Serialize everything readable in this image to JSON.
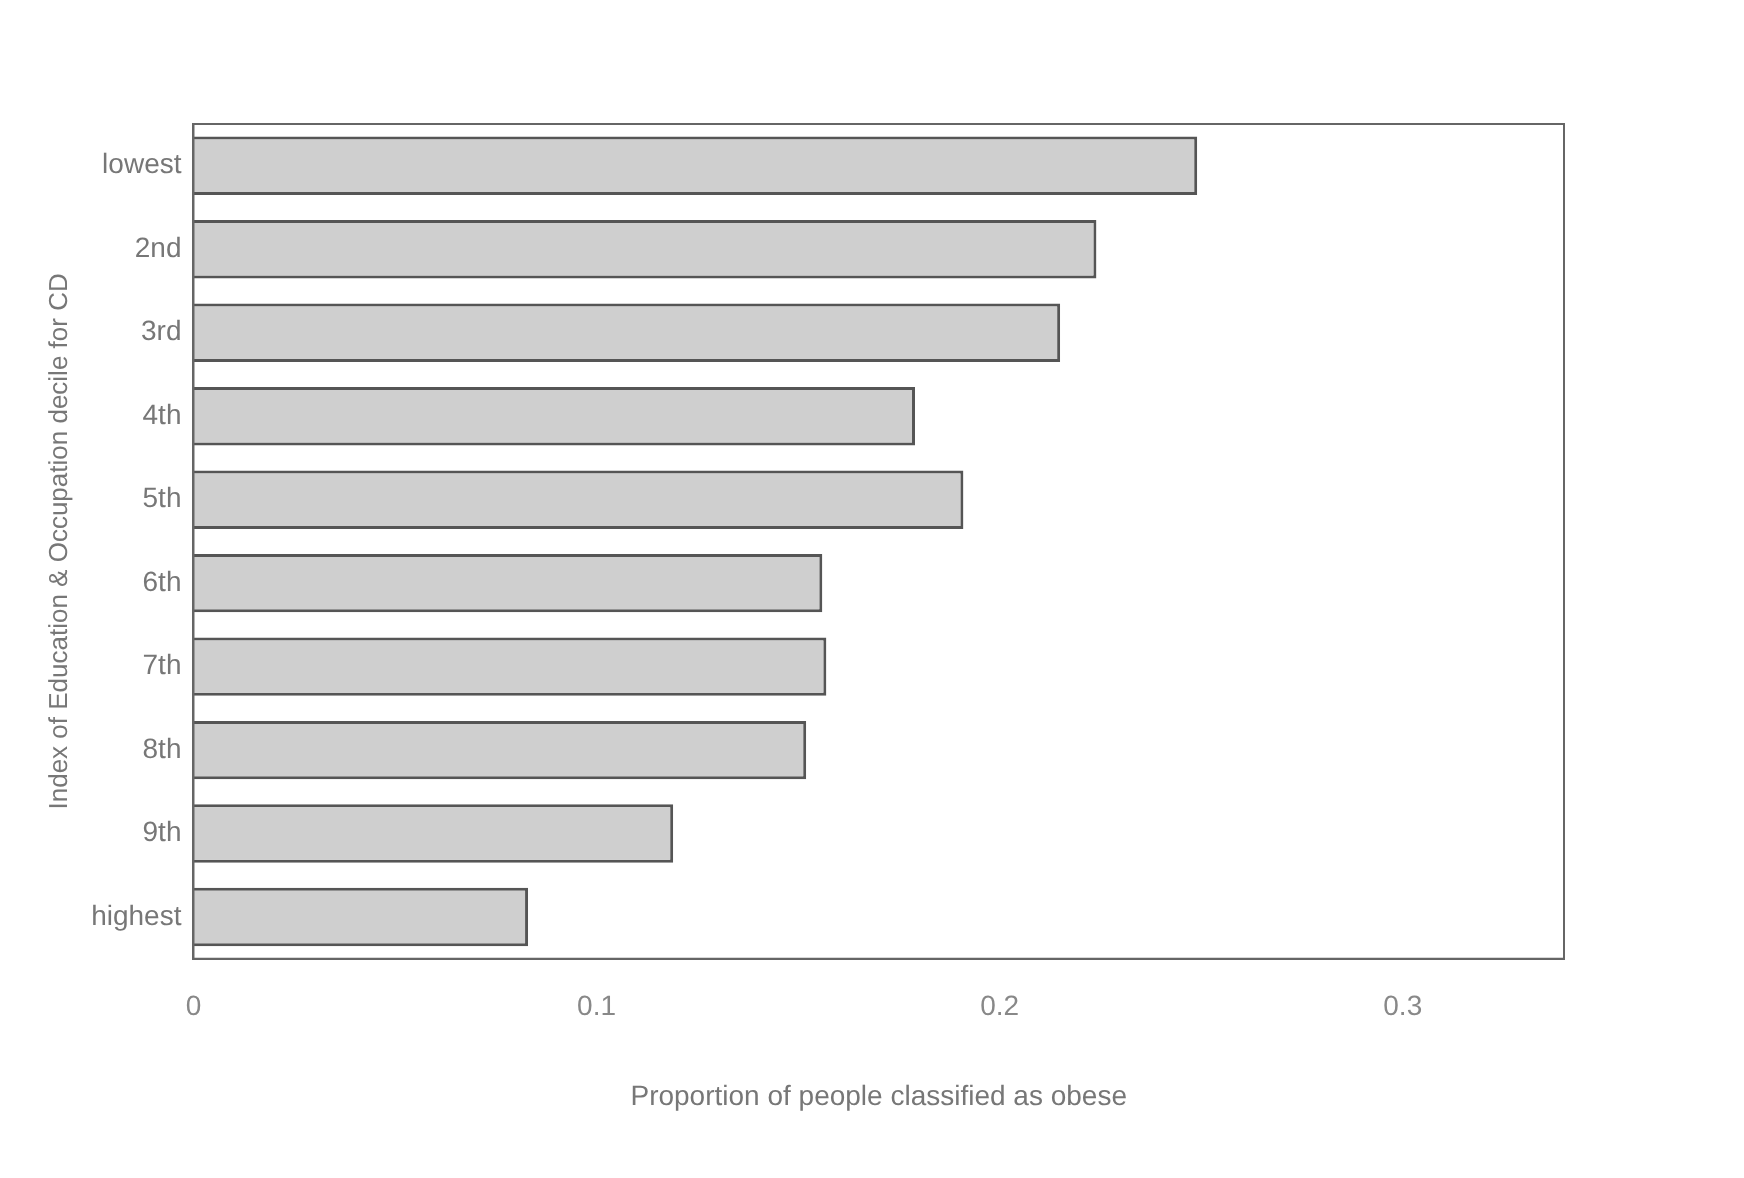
{
  "chart_data": {
    "type": "bar",
    "orientation": "horizontal",
    "xlabel": "Proportion of people classified as obese",
    "ylabel": "Index of Education & Occupation decile for CD",
    "categories": [
      "lowest",
      "2nd",
      "3rd",
      "4th",
      "5th",
      "6th",
      "7th",
      "8th",
      "9th",
      "highest"
    ],
    "values": [
      0.249,
      0.224,
      0.215,
      0.179,
      0.191,
      0.156,
      0.157,
      0.152,
      0.119,
      0.083
    ],
    "color": "#cfcfcf",
    "xlim": [
      0,
      0.34
    ],
    "xticks": [
      0,
      0.1,
      0.2,
      0.3
    ],
    "grid": false,
    "legend": false
  }
}
